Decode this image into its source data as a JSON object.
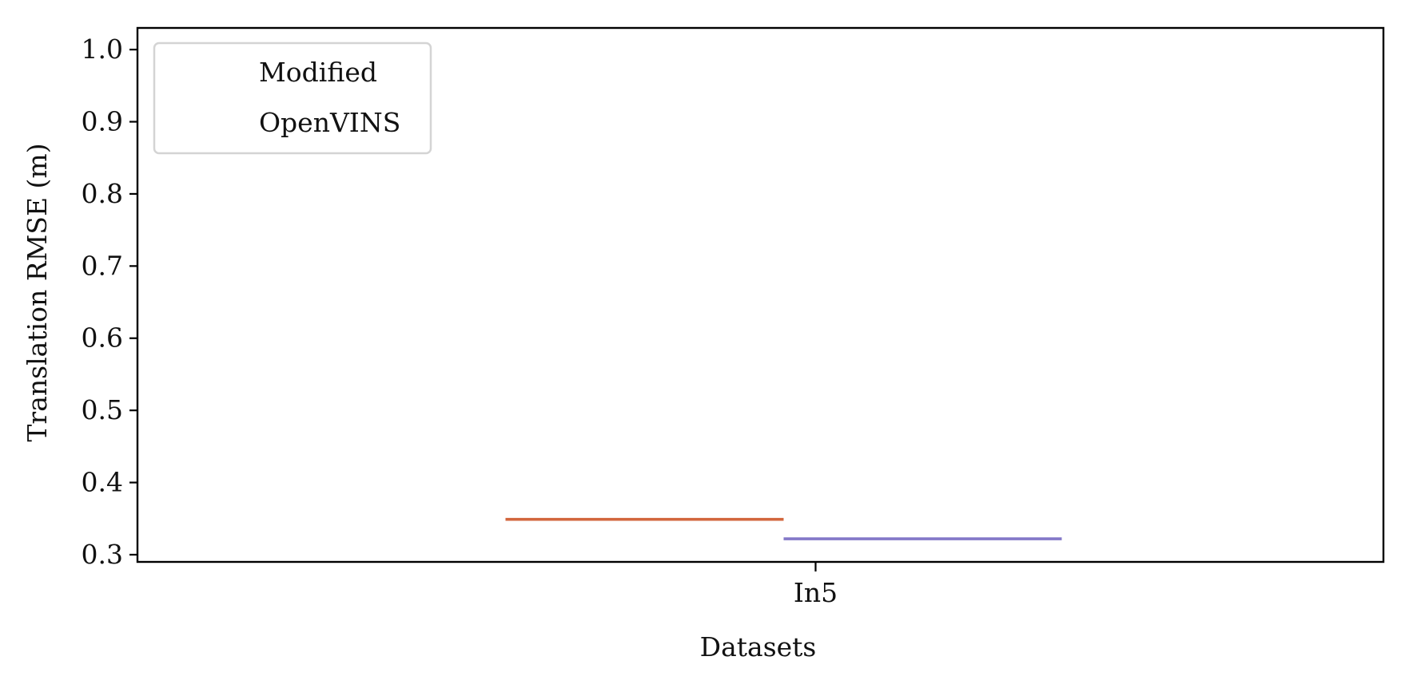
{
  "chart_data": {
    "type": "box",
    "xlabel": "Datasets",
    "ylabel": "Translation RMSE (m)",
    "ylim": [
      0.29,
      1.03
    ],
    "yticks": [
      0.3,
      0.4,
      0.5,
      0.6,
      0.7,
      0.8,
      0.9,
      1.0
    ],
    "ytick_labels": [
      "0.3",
      "0.4",
      "0.5",
      "0.6",
      "0.7",
      "0.8",
      "0.9",
      "1.0"
    ],
    "categories": [
      "In5"
    ],
    "legend_position": "upper-left",
    "series": [
      {
        "name": "Modified",
        "color": "#D2663D",
        "values": [
          0.349
        ]
      },
      {
        "name": "OpenVINS",
        "color": "#8378C8",
        "values": [
          0.322
        ]
      }
    ]
  }
}
